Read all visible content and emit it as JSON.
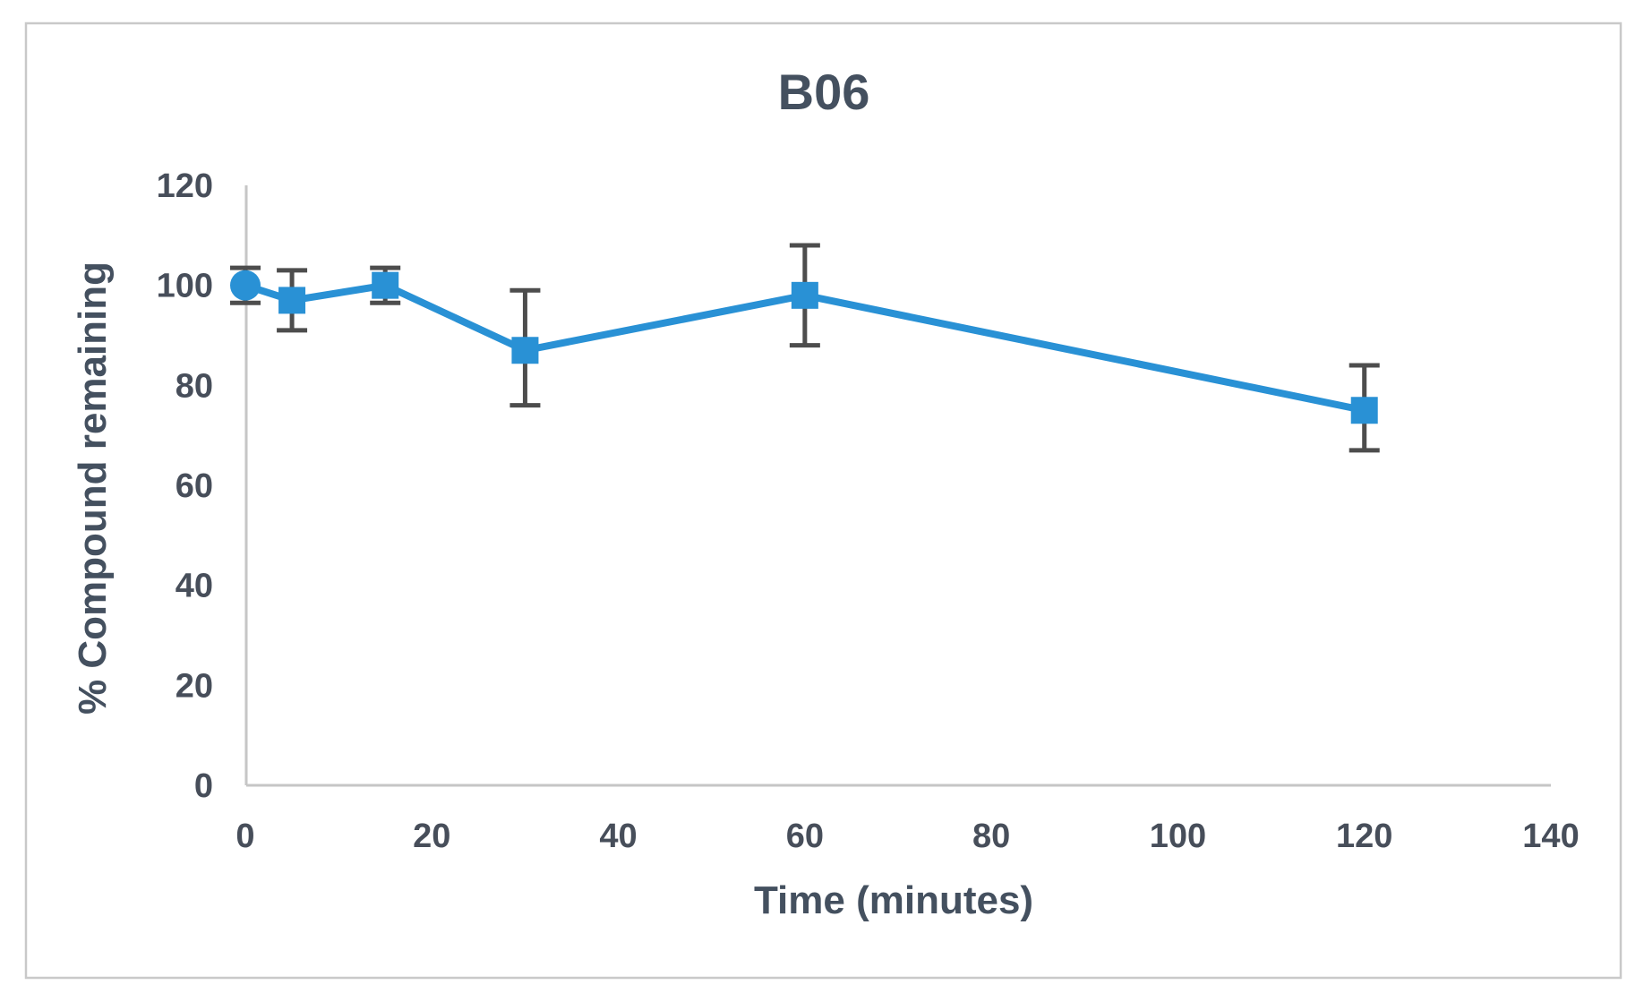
{
  "chart_data": {
    "type": "line",
    "title": "B06",
    "xlabel": "Time (minutes)",
    "ylabel": "% Compound remaining",
    "xlim": [
      0,
      140
    ],
    "ylim": [
      0,
      120
    ],
    "xticks": [
      0,
      20,
      40,
      60,
      80,
      100,
      120,
      140
    ],
    "yticks": [
      0,
      20,
      40,
      60,
      80,
      100,
      120
    ],
    "grid": false,
    "legend": "none",
    "series": [
      {
        "name": "B06",
        "color": "#2991d5",
        "x": [
          0,
          5,
          15,
          30,
          60,
          120
        ],
        "y": [
          100,
          97,
          100,
          87,
          98,
          75
        ],
        "err_up": [
          3.5,
          6,
          3.5,
          12,
          10,
          9
        ],
        "err_down": [
          3.5,
          6,
          3.5,
          11,
          10,
          8
        ],
        "markers": [
          "circle",
          "square",
          "square",
          "square",
          "square",
          "square"
        ]
      }
    ],
    "error_bar_color": "#4d4d4d",
    "axis_line_color": "#c6c6c6",
    "text_color": "#44505f",
    "frame_border_color": "#c9c9c9",
    "background_color": "#ffffff"
  }
}
